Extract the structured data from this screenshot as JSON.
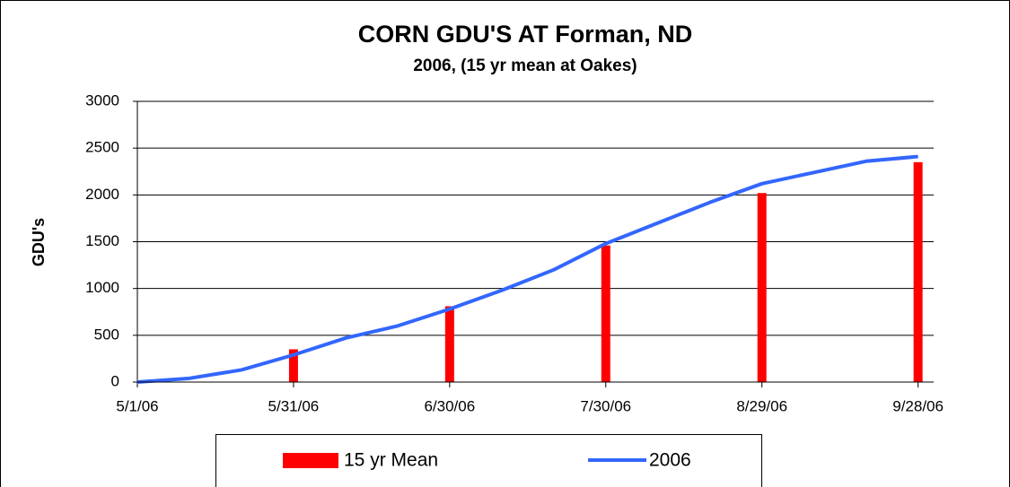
{
  "chart_data": {
    "type": "combo",
    "title": "CORN GDU'S AT Forman, ND",
    "subtitle": "2006, (15 yr mean at Oakes)",
    "y_label": "GDU's",
    "xlim": [
      "5/1/06",
      "10/1/06"
    ],
    "xticks": [
      "5/1/06",
      "5/31/06",
      "6/30/06",
      "7/30/06",
      "8/29/06",
      "9/28/06"
    ],
    "ylim": [
      0,
      3000
    ],
    "yticks": [
      0,
      500,
      1000,
      1500,
      2000,
      2500,
      3000
    ],
    "grid": true,
    "series": [
      {
        "name": "15 yr Mean",
        "kind": "bar",
        "color": "#ff0000",
        "x": [
          "5/31/06",
          "6/30/06",
          "7/30/06",
          "8/29/06",
          "9/28/06"
        ],
        "values": [
          350,
          810,
          1460,
          2020,
          2350
        ]
      },
      {
        "name": "2006",
        "kind": "line",
        "color": "#3366ff",
        "x": [
          "5/1/06",
          "5/11/06",
          "5/21/06",
          "5/31/06",
          "6/10/06",
          "6/20/06",
          "6/30/06",
          "7/10/06",
          "7/20/06",
          "7/30/06",
          "8/9/06",
          "8/19/06",
          "8/29/06",
          "9/8/06",
          "9/18/06",
          "9/28/06"
        ],
        "values": [
          0,
          40,
          130,
          290,
          470,
          600,
          780,
          980,
          1200,
          1480,
          1700,
          1920,
          2120,
          2240,
          2360,
          2410
        ]
      }
    ]
  }
}
